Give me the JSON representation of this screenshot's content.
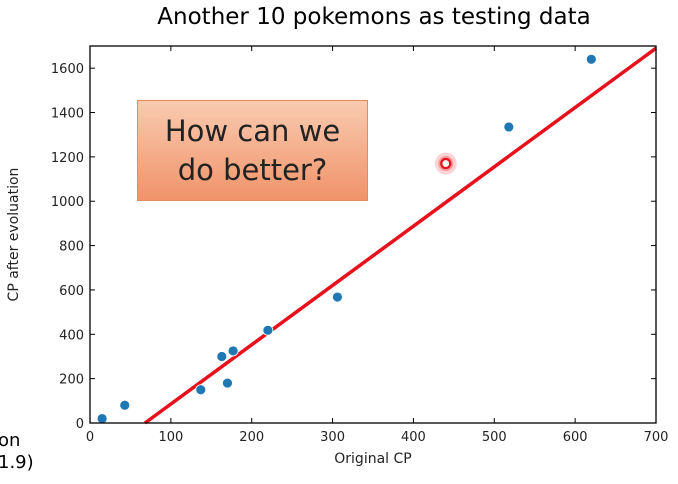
{
  "chart_data": {
    "type": "scatter",
    "title": "Another 10 pokemons as testing data",
    "xlabel": "Original CP",
    "ylabel": "CP after evoluation",
    "xlim": [
      0,
      700
    ],
    "ylim": [
      0,
      1700
    ],
    "xticks": [
      0,
      100,
      200,
      300,
      400,
      500,
      600,
      700
    ],
    "yticks": [
      0,
      200,
      400,
      600,
      800,
      1000,
      1200,
      1400,
      1600
    ],
    "grid": false,
    "points": [
      {
        "x": 15,
        "y": 20
      },
      {
        "x": 43,
        "y": 80
      },
      {
        "x": 137,
        "y": 150
      },
      {
        "x": 163,
        "y": 300
      },
      {
        "x": 170,
        "y": 180
      },
      {
        "x": 177,
        "y": 325
      },
      {
        "x": 220,
        "y": 418
      },
      {
        "x": 306,
        "y": 568
      },
      {
        "x": 518,
        "y": 1335
      },
      {
        "x": 620,
        "y": 1640
      }
    ],
    "highlight_point": {
      "x": 440,
      "y": 1170
    },
    "fit_line": {
      "x": [
        68,
        700
      ],
      "y": [
        0,
        1690
      ]
    },
    "colors": {
      "points": "#1f77b4",
      "fit_line": "#e8101a",
      "highlight": "#e8101a"
    }
  },
  "callout": {
    "line1": "How can we",
    "line2": "do better?",
    "colors": {
      "fill_top": "#f9cbb0",
      "fill_bottom": "#f0936a"
    }
  },
  "fragment": {
    "line1": "on",
    "line2": "1.9)"
  }
}
